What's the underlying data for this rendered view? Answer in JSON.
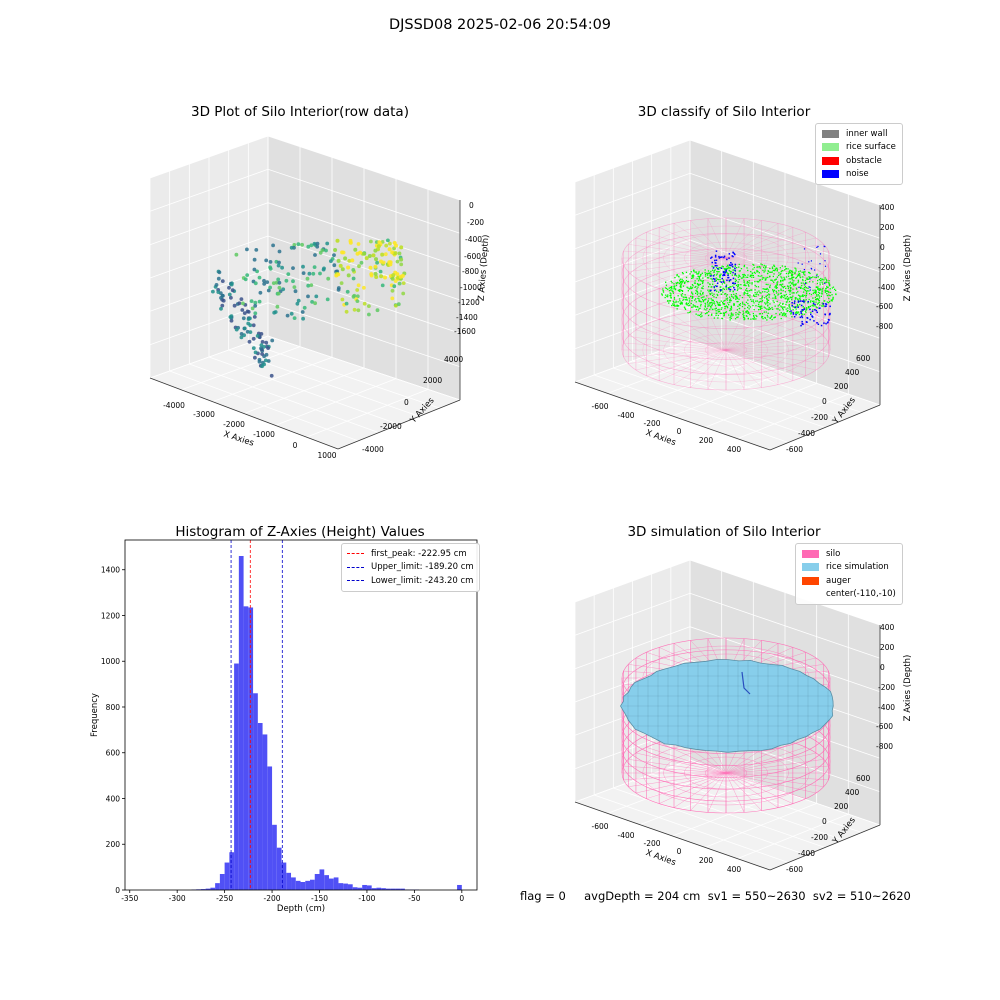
{
  "figure": {
    "suptitle": "DJSSD08 2025-02-06 20:54:09",
    "footer": "flag = 0     avgDepth = 204 cm  sv1 = 550~2630  sv2 = 510~2620"
  },
  "colors": {
    "histogram_bar": "#5050f5",
    "first_peak_line": "#ff0000",
    "limit_line": "#0000cc",
    "inner_wall": "#808080",
    "rice_surface": "#90ee90",
    "obstacle": "#ff0000",
    "noise": "#0000ff",
    "silo": "#ff69b4",
    "rice_simulation": "#87ceeb",
    "auger": "#ff4500"
  },
  "chart_data": [
    {
      "type": "scatter",
      "projection": "3d",
      "title": "3D Plot of Silo Interior(row data)",
      "xlabel": "X Axies",
      "ylabel": "Y Axies",
      "zlabel": "Z Axies (Depth)",
      "xticks": [
        "-4000",
        "-3000",
        "-2000",
        "-1000",
        "0",
        "1000"
      ],
      "yticks": [
        "-4000",
        "-2000",
        "0",
        "2000",
        "4000"
      ],
      "zticks": [
        "0",
        "-200",
        "-400",
        "-600",
        "-800",
        "-1000",
        "-1200",
        "-1400",
        "-1600"
      ],
      "colormap": "viridis"
    },
    {
      "type": "scatter",
      "projection": "3d",
      "title": "3D classify of Silo Interior",
      "xlabel": "X Axies",
      "ylabel": "Y Axies",
      "zlabel": "Z Axies (Depth)",
      "xticks": [
        "-600",
        "-400",
        "-200",
        "0",
        "200",
        "400"
      ],
      "yticks": [
        "-600",
        "-400",
        "-200",
        "0",
        "200",
        "400",
        "600"
      ],
      "zticks": [
        "400",
        "200",
        "0",
        "-200",
        "-400",
        "-600",
        "-800"
      ],
      "legend": [
        "inner wall",
        "rice surface",
        "obstacle",
        "noise"
      ],
      "legend_loc": "upper right"
    },
    {
      "type": "bar",
      "subtype": "histogram",
      "title": "Histogram of Z-Axies (Height) Values",
      "xlabel": "Depth (cm)",
      "ylabel": "Frequency",
      "xlim": [
        -355,
        16
      ],
      "ylim": [
        0,
        1530
      ],
      "xticks": [
        -350,
        -300,
        -250,
        -200,
        -150,
        -100,
        -50,
        0
      ],
      "yticks": [
        0,
        200,
        400,
        600,
        800,
        1000,
        1200,
        1400
      ],
      "bin_width": 5,
      "bins": [
        {
          "x0": -285,
          "count": 2
        },
        {
          "x0": -280,
          "count": 3
        },
        {
          "x0": -275,
          "count": 4
        },
        {
          "x0": -270,
          "count": 6
        },
        {
          "x0": -265,
          "count": 10
        },
        {
          "x0": -260,
          "count": 30
        },
        {
          "x0": -255,
          "count": 70
        },
        {
          "x0": -250,
          "count": 120
        },
        {
          "x0": -245,
          "count": 165
        },
        {
          "x0": -240,
          "count": 990
        },
        {
          "x0": -235,
          "count": 1460
        },
        {
          "x0": -230,
          "count": 1240
        },
        {
          "x0": -225,
          "count": 1235
        },
        {
          "x0": -220,
          "count": 860
        },
        {
          "x0": -215,
          "count": 730
        },
        {
          "x0": -210,
          "count": 680
        },
        {
          "x0": -205,
          "count": 540
        },
        {
          "x0": -200,
          "count": 285
        },
        {
          "x0": -195,
          "count": 185
        },
        {
          "x0": -190,
          "count": 120
        },
        {
          "x0": -185,
          "count": 75
        },
        {
          "x0": -180,
          "count": 55
        },
        {
          "x0": -175,
          "count": 40
        },
        {
          "x0": -170,
          "count": 35
        },
        {
          "x0": -165,
          "count": 40
        },
        {
          "x0": -160,
          "count": 45
        },
        {
          "x0": -155,
          "count": 70
        },
        {
          "x0": -150,
          "count": 90
        },
        {
          "x0": -145,
          "count": 65
        },
        {
          "x0": -140,
          "count": 50
        },
        {
          "x0": -135,
          "count": 55
        },
        {
          "x0": -130,
          "count": 30
        },
        {
          "x0": -125,
          "count": 28
        },
        {
          "x0": -120,
          "count": 25
        },
        {
          "x0": -115,
          "count": 12
        },
        {
          "x0": -110,
          "count": 10
        },
        {
          "x0": -105,
          "count": 22
        },
        {
          "x0": -100,
          "count": 20
        },
        {
          "x0": -95,
          "count": 8
        },
        {
          "x0": -90,
          "count": 10
        },
        {
          "x0": -85,
          "count": 8
        },
        {
          "x0": -80,
          "count": 6
        },
        {
          "x0": -75,
          "count": 6
        },
        {
          "x0": -70,
          "count": 6
        },
        {
          "x0": -65,
          "count": 6
        },
        {
          "x0": -60,
          "count": 2
        },
        {
          "x0": -55,
          "count": 2
        },
        {
          "x0": -50,
          "count": 2
        },
        {
          "x0": -5,
          "count": 22
        }
      ],
      "vlines": [
        {
          "label": "first_peak: -222.95 cm",
          "x": -222.95,
          "color": "#ff0000"
        },
        {
          "label": "Upper_limit: -189.20 cm",
          "x": -189.2,
          "color": "#0000cc"
        },
        {
          "label": "Lower_limit: -243.20 cm",
          "x": -243.2,
          "color": "#0000cc"
        }
      ],
      "legend_loc": "upper right"
    },
    {
      "type": "scatter",
      "projection": "3d",
      "title": "3D simulation of Silo Interior",
      "xlabel": "X Axies",
      "ylabel": "Y Axies",
      "zlabel": "Z Axies (Depth)",
      "xticks": [
        "-600",
        "-400",
        "-200",
        "0",
        "200",
        "400"
      ],
      "yticks": [
        "-600",
        "-400",
        "-200",
        "0",
        "200",
        "400",
        "600"
      ],
      "zticks": [
        "400",
        "200",
        "0",
        "-200",
        "-400",
        "-600",
        "-800"
      ],
      "legend": [
        "silo",
        "rice simulation",
        "auger",
        "center(-110,-10)"
      ],
      "legend_loc": "upper right"
    }
  ]
}
